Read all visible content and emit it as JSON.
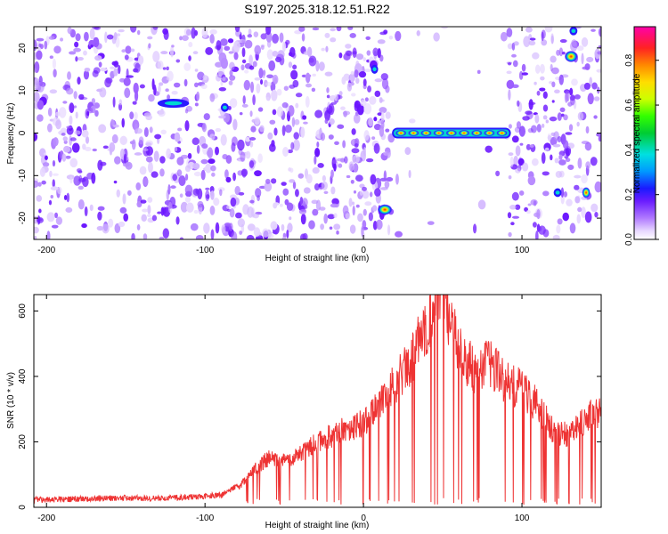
{
  "title": "S197.2025.318.12.51.R22",
  "chart_data": [
    {
      "type": "heatmap",
      "xlabel": "Height of straight line (km)",
      "ylabel": "Frequency (Hz)",
      "xlim": [
        -208,
        150
      ],
      "ylim": [
        -25,
        25
      ],
      "xticks": [
        -200,
        -100,
        0,
        100
      ],
      "yticks": [
        -20,
        -10,
        0,
        10,
        20
      ],
      "colorbar": {
        "label": "Normalized spectral amplitude",
        "range": [
          0.0,
          0.95
        ],
        "ticks": [
          0.0,
          0.2,
          0.4,
          0.6,
          0.8
        ],
        "tick_labels": [
          "0.0",
          "0.2",
          "0.4",
          "0.6",
          "0.8"
        ]
      },
      "features": [
        {
          "name": "narrowband line",
          "x": [
            18,
            93
          ],
          "freq_hz": 0,
          "peak": 0.9
        },
        {
          "name": "blob",
          "x": [
            -130,
            -110
          ],
          "freq_hz": 7,
          "peak": 0.35
        },
        {
          "name": "blob",
          "x": [
            -90,
            -85
          ],
          "freq_hz": 6,
          "peak": 0.3
        },
        {
          "name": "blob",
          "x": [
            5,
            9
          ],
          "freq_hz": 15,
          "peak": 0.35
        },
        {
          "name": "blob",
          "x": [
            9,
            18
          ],
          "freq_hz": -18,
          "peak": 0.6
        },
        {
          "name": "blob",
          "x": [
            120,
            125
          ],
          "freq_hz": -14,
          "peak": 0.3
        },
        {
          "name": "blob",
          "x": [
            127,
            135
          ],
          "freq_hz": 18,
          "peak": 0.75
        },
        {
          "name": "blob",
          "x": [
            138,
            143
          ],
          "freq_hz": -14,
          "peak": 0.65
        },
        {
          "name": "blob",
          "x": [
            130,
            135
          ],
          "freq_hz": 24,
          "peak": 0.3
        }
      ]
    },
    {
      "type": "line",
      "xlabel": "Height of straight line (km)",
      "ylabel": "SNR (10 * v/v)",
      "xlim": [
        -208,
        150
      ],
      "ylim": [
        0,
        650
      ],
      "xticks": [
        -200,
        -100,
        0,
        100
      ],
      "yticks": [
        0,
        200,
        400,
        600
      ],
      "series": [
        {
          "name": "SNR",
          "color": "#ee3333",
          "x": [
            -208,
            -190,
            -170,
            -150,
            -130,
            -110,
            -100,
            -90,
            -80,
            -70,
            -60,
            -50,
            -40,
            -30,
            -20,
            -10,
            0,
            10,
            20,
            30,
            40,
            45,
            50,
            55,
            60,
            70,
            80,
            90,
            100,
            110,
            120,
            130,
            140,
            150
          ],
          "y": [
            15,
            15,
            18,
            20,
            18,
            22,
            25,
            28,
            55,
            110,
            150,
            140,
            160,
            200,
            220,
            240,
            260,
            320,
            380,
            450,
            560,
            620,
            630,
            560,
            480,
            420,
            440,
            380,
            360,
            310,
            230,
            220,
            270,
            300
          ]
        }
      ]
    }
  ]
}
